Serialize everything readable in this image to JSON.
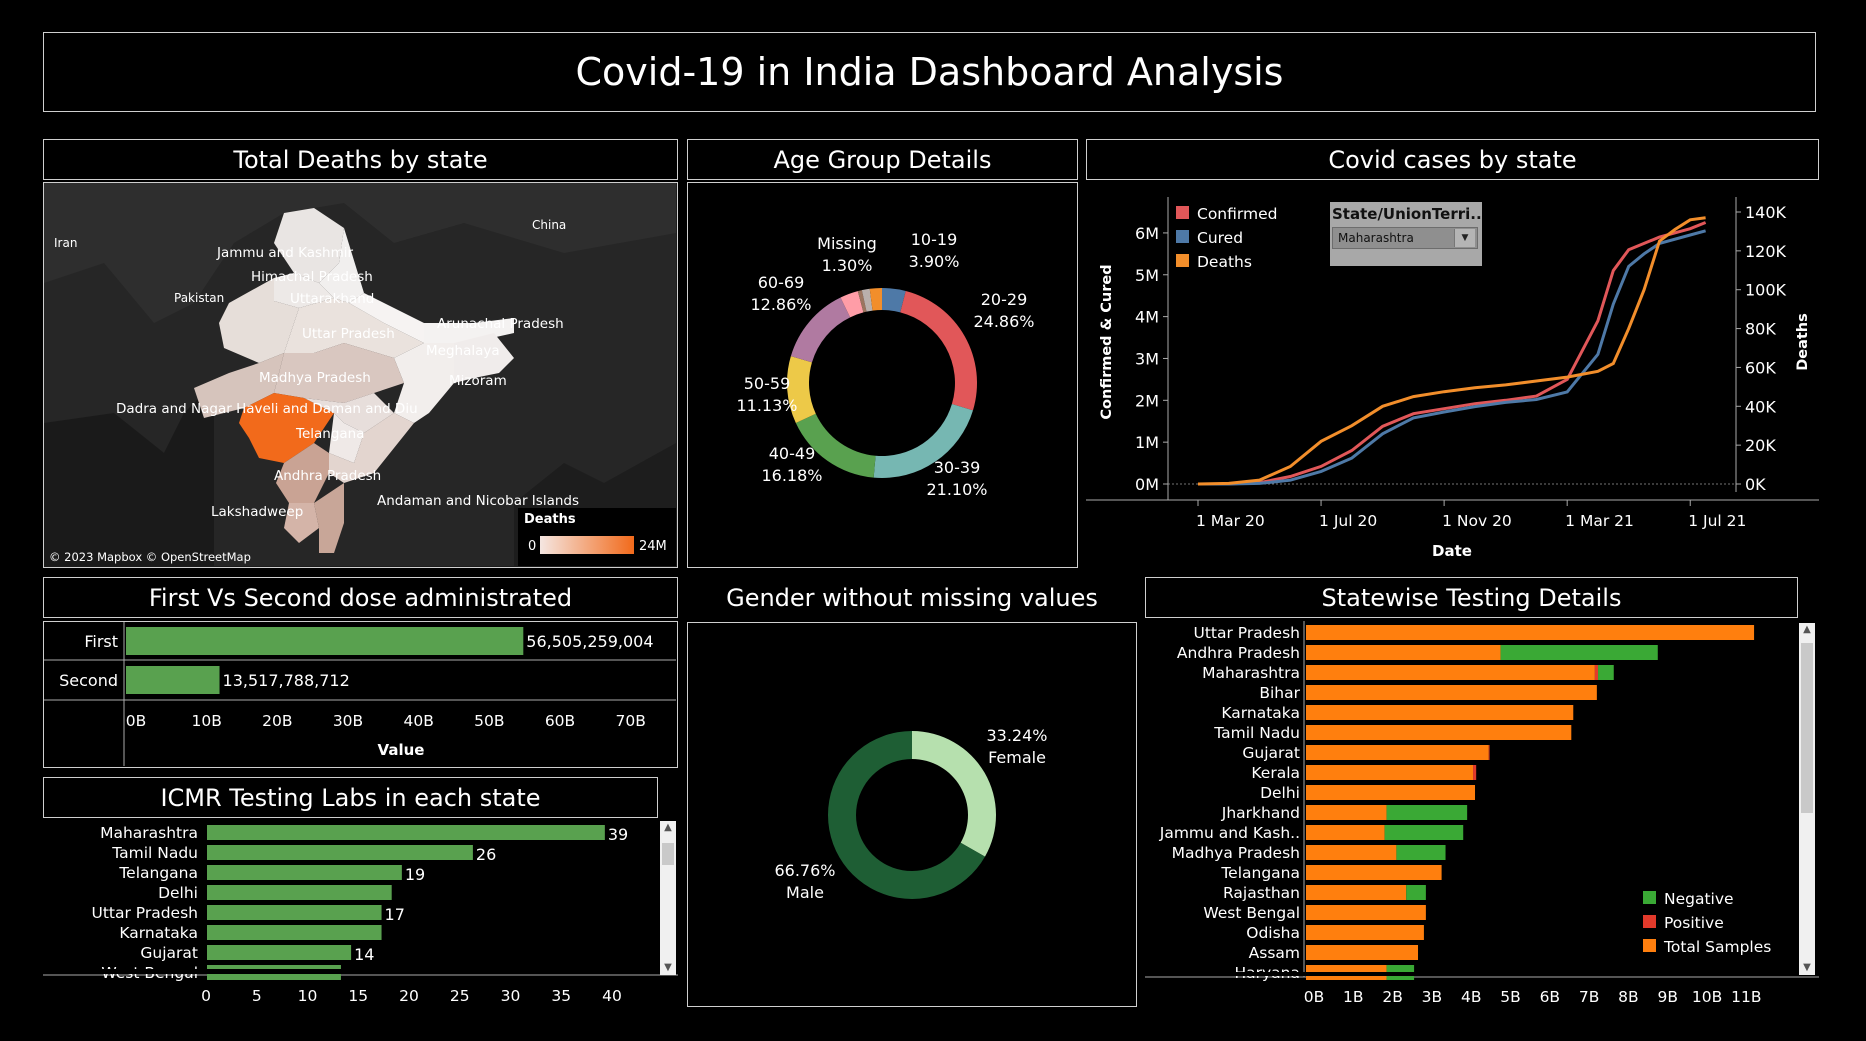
{
  "dashboard_title": "Covid-19 in India Dashboard Analysis",
  "deaths_map": {
    "title": "Total Deaths by state",
    "countries": [
      "Iran",
      "Pakistan",
      "China"
    ],
    "state_labels": [
      "Jammu and Kashmir",
      "Himachal Pradesh",
      "Uttarakhand",
      "Uttar Pradesh",
      "Arunachal Pradesh",
      "Meghalaya",
      "Madhya Pradesh",
      "Mizoram",
      "Dadra and Nagar Haveli and Daman and Diu",
      "Telangana",
      "Andhra Pradesh",
      "Andaman and Nicobar Islands",
      "Lakshadweep"
    ],
    "attribution": "© 2023 Mapbox © OpenStreetMap",
    "legend": {
      "title": "Deaths",
      "min": "0",
      "max": "24M",
      "color_low": "#f4e6e1",
      "color_high": "#f26a1b"
    }
  },
  "age_group": {
    "title": "Age Group Details",
    "chart_data": {
      "type": "pie",
      "slices": [
        {
          "label": "10-19",
          "pct": "3.90%",
          "value": 3.9,
          "color": "#4e79a7"
        },
        {
          "label": "20-29",
          "pct": "24.86%",
          "value": 24.86,
          "color": "#e15759"
        },
        {
          "label": "30-39",
          "pct": "21.10%",
          "value": 21.1,
          "color": "#76b7b2"
        },
        {
          "label": "40-49",
          "pct": "16.18%",
          "value": 16.18,
          "color": "#59a14f"
        },
        {
          "label": "50-59",
          "pct": "11.13%",
          "value": 11.13,
          "color": "#edc948"
        },
        {
          "label": "60-69",
          "pct": "12.86%",
          "value": 12.86,
          "color": "#b07aa1"
        },
        {
          "label": "",
          "pct": "",
          "value": 3.0,
          "color": "#ff9da7"
        },
        {
          "label": "",
          "pct": "",
          "value": 0.67,
          "color": "#9c755f"
        },
        {
          "label": "Missing",
          "pct": "1.30%",
          "value": 1.3,
          "color": "#bab0ac"
        },
        {
          "label": "",
          "pct": "",
          "value": 2.0,
          "color": "#f28e2b"
        }
      ]
    }
  },
  "covid_cases": {
    "title": "Covid cases by state",
    "legend": [
      {
        "name": "Confirmed",
        "color": "#e15759"
      },
      {
        "name": "Cured",
        "color": "#4e79a7"
      },
      {
        "name": "Deaths",
        "color": "#f28e2b"
      }
    ],
    "filter": {
      "title": "State/UnionTerri..",
      "value": "Maharashtra"
    },
    "chart_data": {
      "type": "line",
      "xlabel": "Date",
      "ylabel": "Confirmed & Cured",
      "y2label": "Deaths",
      "x_ticks": [
        "1 Mar 20",
        "1 Jul 20",
        "1 Nov 20",
        "1 Mar 21",
        "1 Jul 21"
      ],
      "y_ticks": [
        "0M",
        "1M",
        "2M",
        "3M",
        "4M",
        "5M",
        "6M"
      ],
      "y2_ticks": [
        "0K",
        "20K",
        "40K",
        "60K",
        "80K",
        "100K",
        "120K",
        "140K"
      ],
      "ylim": [
        0,
        6500000
      ],
      "y2lim": [
        0,
        140000
      ],
      "xlim": [
        0,
        17
      ],
      "series": [
        {
          "name": "Confirmed",
          "axis": "left",
          "color": "#e15759",
          "x": [
            0,
            1,
            2,
            3,
            4,
            5,
            6,
            7,
            8,
            9,
            10,
            11,
            12,
            13,
            13.5,
            14,
            14.5,
            15,
            16,
            16.5
          ],
          "y": [
            0,
            2500,
            30000,
            180000,
            420000,
            800000,
            1380000,
            1680000,
            1800000,
            1920000,
            2000000,
            2100000,
            2500000,
            3900000,
            5100000,
            5600000,
            5750000,
            5900000,
            6100000,
            6250000
          ]
        },
        {
          "name": "Cured",
          "axis": "left",
          "color": "#4e79a7",
          "x": [
            0,
            1,
            2,
            3,
            4,
            5,
            6,
            7,
            8,
            9,
            10,
            11,
            12,
            13,
            13.5,
            14,
            14.5,
            15,
            16,
            16.5
          ],
          "y": [
            0,
            1000,
            15000,
            90000,
            300000,
            620000,
            1200000,
            1580000,
            1720000,
            1850000,
            1950000,
            2020000,
            2200000,
            3100000,
            4300000,
            5200000,
            5500000,
            5750000,
            5950000,
            6050000
          ]
        },
        {
          "name": "Deaths",
          "axis": "right",
          "color": "#f28e2b",
          "x": [
            0,
            1,
            2,
            3,
            4,
            5,
            6,
            7,
            8,
            9,
            10,
            11,
            12,
            13,
            13.5,
            14,
            14.5,
            15,
            15.5,
            16,
            16.5
          ],
          "y": [
            0,
            300,
            2000,
            9000,
            22000,
            30000,
            40000,
            45000,
            47500,
            49500,
            51000,
            53000,
            55000,
            58000,
            62000,
            80000,
            100000,
            125000,
            131000,
            136000,
            137000
          ]
        }
      ]
    }
  },
  "doses": {
    "title": "First Vs Second dose administrated",
    "chart_data": {
      "type": "bar",
      "categories": [
        "First",
        "Second"
      ],
      "values": [
        56505259004,
        13517788712
      ],
      "value_labels": [
        "56,505,259,004",
        "13,517,788,712"
      ],
      "x_ticks": [
        "0B",
        "10B",
        "20B",
        "30B",
        "40B",
        "50B",
        "60B",
        "70B"
      ],
      "xlim": [
        0,
        75000000000
      ],
      "xlabel": "Value",
      "color": "#59a14f"
    }
  },
  "gender": {
    "title": "Gender without missing values",
    "chart_data": {
      "type": "pie",
      "slices": [
        {
          "label": "Female",
          "pct": "33.24%",
          "value": 33.24,
          "color": "#b6e0ae"
        },
        {
          "label": "Male",
          "pct": "66.76%",
          "value": 66.76,
          "color": "#1e5e34"
        }
      ]
    }
  },
  "icmr_labs": {
    "title": "ICMR Testing Labs in each state",
    "chart_data": {
      "type": "bar",
      "categories": [
        "Maharashtra",
        "Tamil Nadu",
        "Telangana",
        "Delhi",
        "Uttar Pradesh",
        "Karnataka",
        "Gujarat",
        "West Bengal"
      ],
      "values": [
        39,
        26,
        19,
        18,
        17,
        17,
        14,
        13
      ],
      "value_labels": [
        "39",
        "26",
        "19",
        "",
        "17",
        "",
        "14",
        ""
      ],
      "x_ticks": [
        "0",
        "5",
        "10",
        "15",
        "20",
        "25",
        "30",
        "35",
        "40"
      ],
      "xlim": [
        0,
        44
      ],
      "color": "#59a14f"
    }
  },
  "statewise_testing": {
    "title": "Statewise Testing Details",
    "legend": [
      {
        "name": "Negative",
        "color": "#3aa935"
      },
      {
        "name": "Positive",
        "color": "#e23a2b"
      },
      {
        "name": "Total Samples",
        "color": "#ff7f0e"
      }
    ],
    "chart_data": {
      "type": "bar",
      "categories": [
        "Uttar Pradesh",
        "Andhra Pradesh",
        "Maharashtra",
        "Bihar",
        "Karnataka",
        "Tamil Nadu",
        "Gujarat",
        "Kerala",
        "Delhi",
        "Jharkhand",
        "Jammu and Kash..",
        "Madhya Pradesh",
        "Telangana",
        "Rajasthan",
        "West Bengal",
        "Odisha",
        "Assam",
        "Haryana"
      ],
      "x_ticks": [
        "0B",
        "1B",
        "2B",
        "3B",
        "4B",
        "5B",
        "6B",
        "7B",
        "8B",
        "9B",
        "10B",
        "11B"
      ],
      "xlim": [
        0,
        12
      ],
      "series": [
        {
          "name": "Total Samples",
          "values": [
            11.4,
            4.95,
            7.35,
            7.4,
            6.8,
            6.75,
            4.65,
            4.25,
            4.3,
            2.05,
            2.0,
            2.3,
            3.45,
            2.55,
            3.05,
            3.0,
            2.85,
            2.05
          ]
        },
        {
          "name": "Positive",
          "values": [
            0,
            0,
            0.08,
            0,
            0,
            0,
            0.02,
            0.08,
            0,
            0,
            0,
            0,
            0,
            0,
            0,
            0,
            0,
            0
          ]
        },
        {
          "name": "Negative",
          "values": [
            0,
            4.0,
            0.4,
            0,
            0,
            0,
            0,
            0,
            0,
            2.05,
            2.0,
            1.25,
            0,
            0.5,
            0,
            0,
            0,
            0.7
          ]
        }
      ]
    }
  }
}
